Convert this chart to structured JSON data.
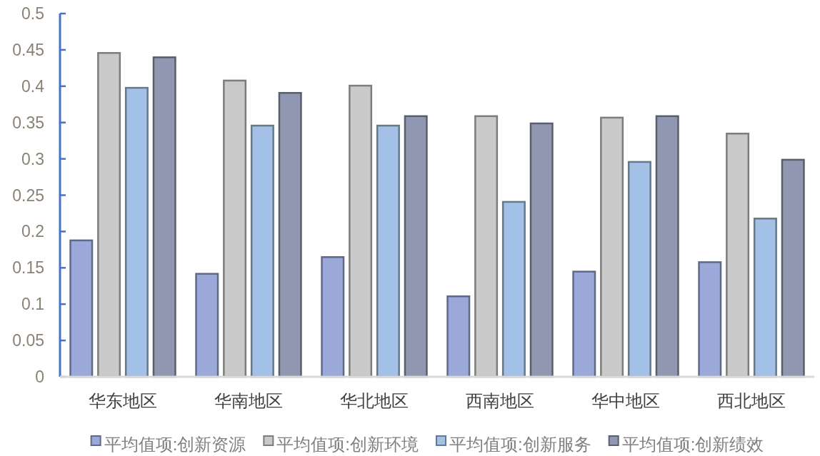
{
  "chart_data": {
    "type": "bar",
    "categories": [
      "华东地区",
      "华南地区",
      "华北地区",
      "西南地区",
      "华中地区",
      "西北地区"
    ],
    "series": [
      {
        "name": "平均值项:创新资源",
        "color": "#9aa9da",
        "values": [
          0.189,
          0.143,
          0.166,
          0.112,
          0.146,
          0.159
        ]
      },
      {
        "name": "平均值项:创新环境",
        "color": "#c9c9c9",
        "values": [
          0.447,
          0.409,
          0.402,
          0.36,
          0.358,
          0.336
        ]
      },
      {
        "name": "平均值项:创新服务",
        "color": "#a2c1e5",
        "values": [
          0.399,
          0.347,
          0.347,
          0.242,
          0.297,
          0.219
        ]
      },
      {
        "name": "平均值项:创新绩效",
        "color": "#9097b0",
        "values": [
          0.441,
          0.392,
          0.36,
          0.35,
          0.36,
          0.3
        ]
      }
    ],
    "ylim": [
      0,
      0.5
    ],
    "yticks": [
      0,
      0.05,
      0.1,
      0.15,
      0.2,
      0.25,
      0.3,
      0.35,
      0.4,
      0.45,
      0.5
    ],
    "legend": "bottom"
  }
}
